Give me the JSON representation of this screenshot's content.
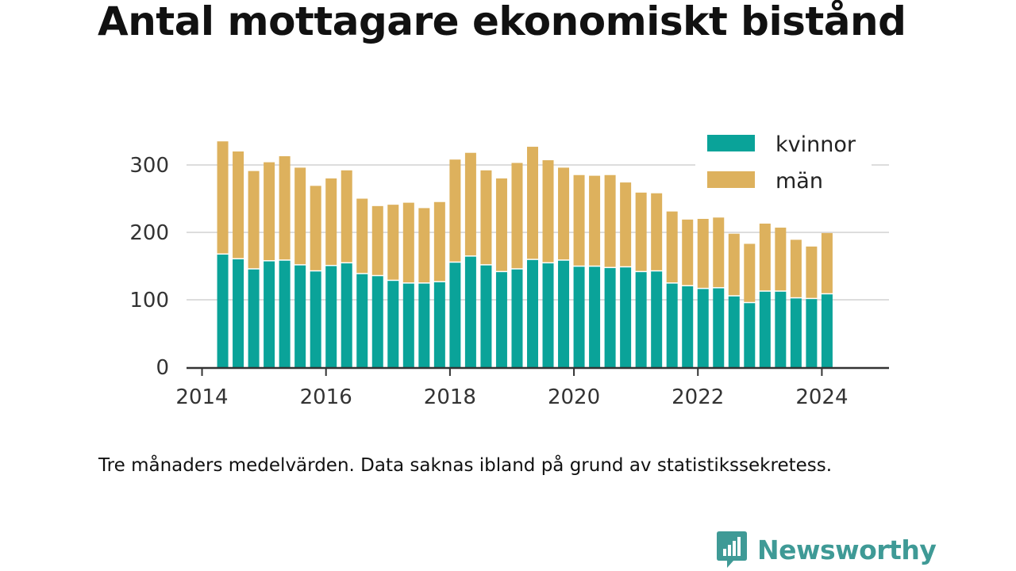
{
  "title": "Antal mottagare ekonomiskt bistånd",
  "footnote": "Tre månaders medelvärden. Data saknas ibland på grund av statistikssekretess.",
  "brand": {
    "name": "Newsworthy"
  },
  "colors": {
    "kvinnor": "#0aa399",
    "man": "#ddb15d",
    "grid": "#dddddd",
    "axis": "#333333",
    "brand": "#3f9a96"
  },
  "chart_data": {
    "type": "bar",
    "stacked": true,
    "x_axis": {
      "type": "date",
      "ticks": [
        "2014",
        "2016",
        "2018",
        "2020",
        "2022",
        "2024"
      ],
      "range": [
        "2013-10-01",
        "2025-02-01"
      ]
    },
    "y_axis": {
      "ticks": [
        "0",
        "100",
        "200",
        "300"
      ],
      "range": [
        0,
        340
      ]
    },
    "grid": true,
    "legend_position": "top-right",
    "x": [
      "2014-05",
      "2014-08",
      "2014-11",
      "2015-02",
      "2015-05",
      "2015-08",
      "2015-11",
      "2016-02",
      "2016-05",
      "2016-08",
      "2016-11",
      "2017-02",
      "2017-05",
      "2017-08",
      "2017-11",
      "2018-02",
      "2018-05",
      "2018-08",
      "2018-11",
      "2019-02",
      "2019-05",
      "2019-08",
      "2019-11",
      "2020-02",
      "2020-05",
      "2020-08",
      "2020-11",
      "2021-02",
      "2021-05",
      "2021-08",
      "2021-11",
      "2022-02",
      "2022-05",
      "2022-08",
      "2022-11",
      "2023-02",
      "2023-05",
      "2023-08",
      "2023-11",
      "2024-02"
    ],
    "series": [
      {
        "name": "kvinnor",
        "values": [
          167,
          160,
          145,
          157,
          158,
          151,
          142,
          150,
          154,
          138,
          135,
          128,
          124,
          124,
          126,
          155,
          164,
          151,
          141,
          145,
          159,
          154,
          158,
          149,
          149,
          147,
          148,
          141,
          142,
          124,
          120,
          116,
          117,
          105,
          95,
          112,
          112,
          102,
          101,
          108
        ]
      },
      {
        "name": "män",
        "values": [
          168,
          160,
          146,
          147,
          155,
          145,
          127,
          130,
          138,
          112,
          104,
          113,
          120,
          112,
          119,
          153,
          154,
          141,
          139,
          158,
          168,
          153,
          138,
          136,
          135,
          138,
          126,
          118,
          116,
          107,
          99,
          104,
          105,
          93,
          88,
          101,
          95,
          87,
          78,
          91
        ]
      }
    ]
  }
}
